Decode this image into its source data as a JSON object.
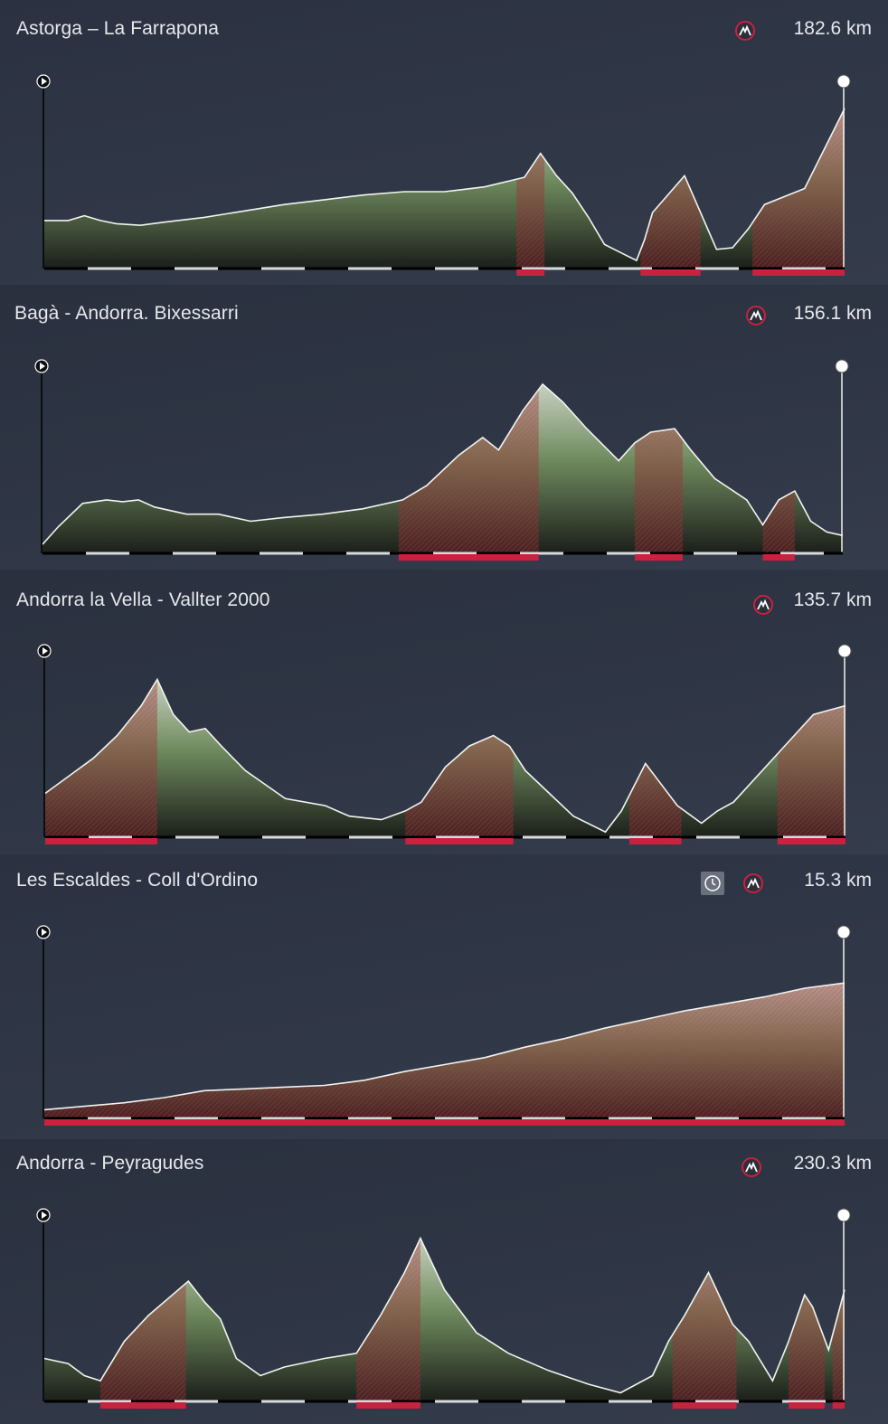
{
  "colors": {
    "profile_top": "#c7d1c0",
    "profile_mid": "#6f8a5e",
    "profile_bottom": "#1b1f1a",
    "climb_red": "#c8223f",
    "axis": "#000000",
    "km_tick": "#d8dadd"
  },
  "chart_data": [
    {
      "type": "area",
      "title": "Astorga – La Farrapona",
      "distance": "182.6 km",
      "icons": [
        "mountain-finish-icon"
      ],
      "x": [
        0,
        0.03,
        0.05,
        0.07,
        0.09,
        0.12,
        0.15,
        0.2,
        0.25,
        0.3,
        0.35,
        0.4,
        0.45,
        0.5,
        0.55,
        0.6,
        0.62,
        0.64,
        0.66,
        0.68,
        0.7,
        0.72,
        0.74,
        0.75,
        0.76,
        0.8,
        0.82,
        0.84,
        0.86,
        0.88,
        0.9,
        0.95,
        1.0
      ],
      "values": [
        0.3,
        0.3,
        0.33,
        0.3,
        0.28,
        0.27,
        0.29,
        0.32,
        0.36,
        0.4,
        0.43,
        0.46,
        0.48,
        0.48,
        0.51,
        0.57,
        0.72,
        0.58,
        0.47,
        0.32,
        0.15,
        0.1,
        0.05,
        0.18,
        0.35,
        0.58,
        0.35,
        0.12,
        0.13,
        0.25,
        0.4,
        0.5,
        1.0
      ],
      "climbs": [
        [
          0.59,
          0.625
        ],
        [
          0.745,
          0.82
        ],
        [
          0.885,
          1.0
        ]
      ]
    },
    {
      "type": "area",
      "title": "Bagà - Andorra. Bixessarri",
      "distance": "156.1 km",
      "icons": [
        "mountain-finish-icon"
      ],
      "x": [
        0,
        0.02,
        0.05,
        0.08,
        0.1,
        0.12,
        0.14,
        0.18,
        0.22,
        0.26,
        0.3,
        0.35,
        0.4,
        0.45,
        0.48,
        0.52,
        0.55,
        0.57,
        0.6,
        0.625,
        0.65,
        0.68,
        0.72,
        0.74,
        0.76,
        0.79,
        0.81,
        0.84,
        0.88,
        0.9,
        0.92,
        0.94,
        0.96,
        0.98,
        1.0
      ],
      "values": [
        0.05,
        0.15,
        0.28,
        0.3,
        0.29,
        0.3,
        0.26,
        0.22,
        0.22,
        0.18,
        0.2,
        0.22,
        0.25,
        0.3,
        0.38,
        0.55,
        0.65,
        0.58,
        0.8,
        0.95,
        0.85,
        0.7,
        0.52,
        0.62,
        0.68,
        0.7,
        0.58,
        0.42,
        0.3,
        0.16,
        0.3,
        0.35,
        0.18,
        0.12,
        0.1
      ],
      "climbs": [
        [
          0.445,
          0.62
        ],
        [
          0.74,
          0.8
        ],
        [
          0.9,
          0.94
        ]
      ]
    },
    {
      "type": "area",
      "title": "Andorra la Vella - Vallter 2000",
      "distance": "135.7 km",
      "icons": [
        "mountain-finish-icon"
      ],
      "x": [
        0,
        0.03,
        0.06,
        0.09,
        0.12,
        0.14,
        0.16,
        0.18,
        0.2,
        0.22,
        0.25,
        0.3,
        0.35,
        0.38,
        0.42,
        0.45,
        0.47,
        0.5,
        0.53,
        0.56,
        0.58,
        0.6,
        0.63,
        0.66,
        0.7,
        0.72,
        0.75,
        0.77,
        0.79,
        0.82,
        0.84,
        0.86,
        0.88,
        0.92,
        0.96,
        1.0
      ],
      "values": [
        0.25,
        0.35,
        0.45,
        0.58,
        0.75,
        0.9,
        0.7,
        0.6,
        0.62,
        0.52,
        0.38,
        0.22,
        0.18,
        0.12,
        0.1,
        0.15,
        0.2,
        0.4,
        0.52,
        0.58,
        0.52,
        0.38,
        0.25,
        0.12,
        0.03,
        0.15,
        0.42,
        0.3,
        0.18,
        0.08,
        0.15,
        0.2,
        0.3,
        0.5,
        0.7,
        0.75
      ],
      "climbs": [
        [
          0,
          0.14
        ],
        [
          0.45,
          0.585
        ],
        [
          0.73,
          0.795
        ],
        [
          0.915,
          1.0
        ]
      ]
    },
    {
      "type": "area",
      "title": "Les Escaldes - Coll d'Ordino",
      "distance": "15.3 km",
      "icons": [
        "clock-icon",
        "mountain-finish-icon"
      ],
      "x": [
        0,
        0.05,
        0.1,
        0.15,
        0.2,
        0.25,
        0.3,
        0.35,
        0.4,
        0.45,
        0.5,
        0.55,
        0.6,
        0.65,
        0.7,
        0.75,
        0.8,
        0.85,
        0.9,
        0.95,
        1.0
      ],
      "values": [
        0.05,
        0.07,
        0.09,
        0.12,
        0.16,
        0.17,
        0.18,
        0.19,
        0.22,
        0.27,
        0.31,
        0.35,
        0.41,
        0.46,
        0.52,
        0.57,
        0.62,
        0.66,
        0.7,
        0.75,
        0.78
      ],
      "climbs": [
        [
          0,
          1.0
        ]
      ]
    },
    {
      "type": "area",
      "title": "Andorra - Peyragudes",
      "distance": "230.3 km",
      "icons": [
        "mountain-finish-icon"
      ],
      "x": [
        0,
        0.03,
        0.05,
        0.07,
        0.1,
        0.13,
        0.16,
        0.18,
        0.2,
        0.22,
        0.24,
        0.27,
        0.3,
        0.35,
        0.39,
        0.42,
        0.45,
        0.47,
        0.5,
        0.54,
        0.58,
        0.63,
        0.68,
        0.72,
        0.76,
        0.78,
        0.8,
        0.83,
        0.86,
        0.88,
        0.91,
        0.93,
        0.95,
        0.96,
        0.98,
        1.0
      ],
      "values": [
        0.25,
        0.22,
        0.15,
        0.12,
        0.35,
        0.5,
        0.62,
        0.7,
        0.58,
        0.48,
        0.25,
        0.15,
        0.2,
        0.25,
        0.28,
        0.5,
        0.75,
        0.95,
        0.65,
        0.4,
        0.28,
        0.18,
        0.1,
        0.05,
        0.15,
        0.35,
        0.5,
        0.75,
        0.45,
        0.35,
        0.12,
        0.35,
        0.62,
        0.55,
        0.3,
        0.65
      ],
      "climbs": [
        [
          0.07,
          0.177
        ],
        [
          0.39,
          0.47
        ],
        [
          0.785,
          0.865
        ],
        [
          0.93,
          0.975
        ],
        [
          0.985,
          1.0
        ]
      ]
    }
  ]
}
